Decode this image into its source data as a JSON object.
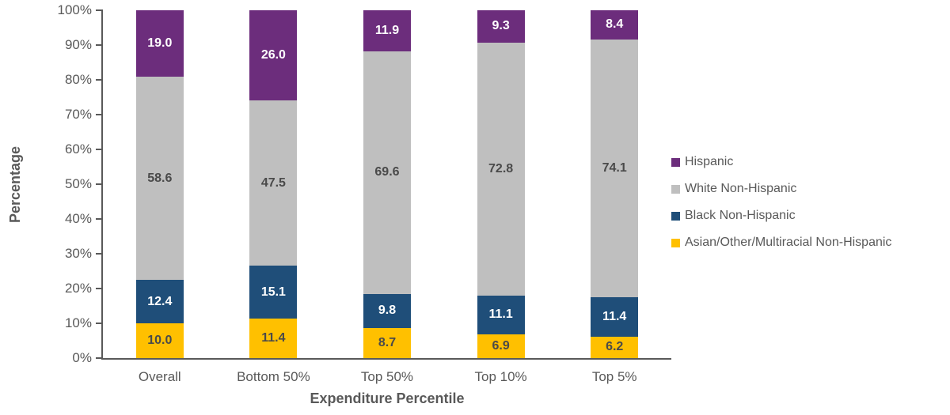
{
  "chart_data": {
    "type": "bar",
    "variant": "stacked-100-percent",
    "title": "",
    "xlabel": "Expenditure Percentile",
    "ylabel": "Percentage",
    "categories": [
      "Overall",
      "Bottom 50%",
      "Top 50%",
      "Top 10%",
      "Top 5%"
    ],
    "series": [
      {
        "name": "Hispanic",
        "color": "#6C2D7C",
        "label_color": "#FFFFFF",
        "values": [
          19.0,
          26.0,
          11.9,
          9.3,
          8.4
        ]
      },
      {
        "name": "White Non-Hispanic",
        "color": "#BFBFBF",
        "label_color": "#4A4A4A",
        "values": [
          58.6,
          47.5,
          69.6,
          72.8,
          74.1
        ]
      },
      {
        "name": "Black Non-Hispanic",
        "color": "#1F4E79",
        "label_color": "#FFFFFF",
        "values": [
          12.4,
          15.1,
          9.8,
          11.1,
          11.4
        ]
      },
      {
        "name": "Asian/Other/Multiracial Non-Hispanic",
        "color": "#FFC000",
        "label_color": "#4A4A4A",
        "values": [
          10.0,
          11.4,
          8.7,
          6.9,
          6.2
        ]
      }
    ],
    "stack_order": "reverse-of-legend",
    "y_ticks": [
      "0%",
      "10%",
      "20%",
      "30%",
      "40%",
      "50%",
      "60%",
      "70%",
      "80%",
      "90%",
      "100%"
    ],
    "ylim": [
      0,
      100
    ],
    "grid": false,
    "legend_position": "right",
    "axis_color": "#595959",
    "text_color": "#595959"
  }
}
